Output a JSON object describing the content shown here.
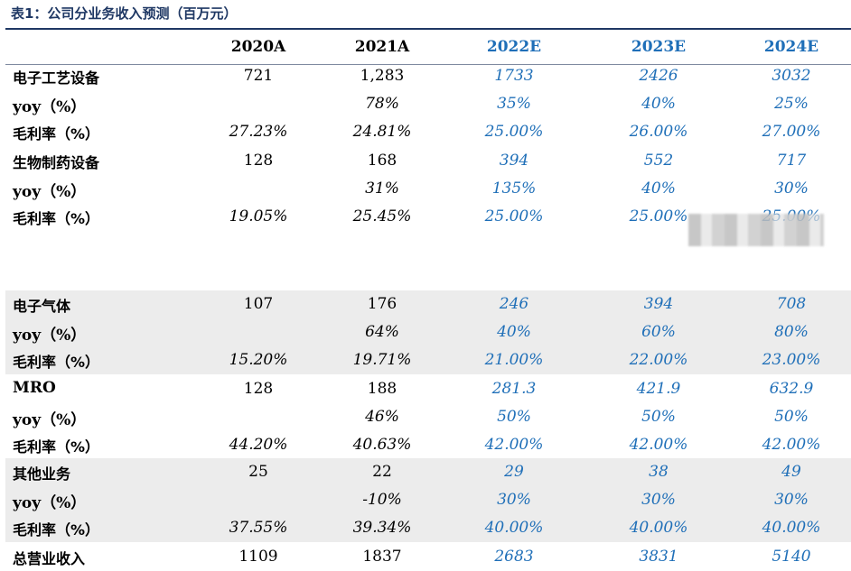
{
  "caption": "表1：公司分业务收入预测（百万元）",
  "header": [
    "2020A",
    "2021A",
    "2022E",
    "2023E",
    "2024E"
  ],
  "groups": [
    {
      "rows": [
        {
          "label": "电子工艺设备",
          "values": [
            "721",
            "1,283",
            "1733",
            "2426",
            "3032"
          ]
        },
        {
          "label": "yoy（%）",
          "values": [
            "",
            "78%",
            "35%",
            "40%",
            "25%"
          ]
        },
        {
          "label": "毛利率（%）",
          "values": [
            "27.23%",
            "24.81%",
            "25.00%",
            "26.00%",
            "27.00%"
          ]
        }
      ]
    },
    {
      "rows": [
        {
          "label": "生物制药设备",
          "values": [
            "128",
            "168",
            "394",
            "552",
            "717"
          ]
        },
        {
          "label": "yoy（%）",
          "values": [
            "",
            "31%",
            "135%",
            "40%",
            "30%"
          ]
        },
        {
          "label": "毛利率（%）",
          "values": [
            "19.05%",
            "25.45%",
            "25.00%",
            "25.00%",
            "25.00%"
          ]
        }
      ]
    },
    {
      "rows": [
        {
          "label": "电子气体",
          "values": [
            "107",
            "176",
            "246",
            "394",
            "708"
          ]
        },
        {
          "label": "yoy（%）",
          "values": [
            "",
            "64%",
            "40%",
            "60%",
            "80%"
          ]
        },
        {
          "label": "毛利率（%）",
          "values": [
            "15.20%",
            "19.71%",
            "21.00%",
            "22.00%",
            "23.00%"
          ]
        }
      ]
    },
    {
      "rows": [
        {
          "label": "MRO",
          "values": [
            "128",
            "188",
            "281.3",
            "421.9",
            "632.9"
          ]
        },
        {
          "label": "yoy（%）",
          "values": [
            "",
            "46%",
            "50%",
            "50%",
            "50%"
          ]
        },
        {
          "label": "毛利率（%）",
          "values": [
            "44.20%",
            "40.63%",
            "42.00%",
            "42.00%",
            "42.00%"
          ]
        }
      ]
    },
    {
      "rows": [
        {
          "label": "其他业务",
          "values": [
            "25",
            "22",
            "29",
            "38",
            "49"
          ]
        },
        {
          "label": "yoy（%）",
          "values": [
            "",
            "-10%",
            "30%",
            "30%",
            "30%"
          ]
        },
        {
          "label": "毛利率（%）",
          "values": [
            "37.55%",
            "39.34%",
            "40.00%",
            "40.00%",
            "40.00%"
          ]
        }
      ]
    },
    {
      "rows": [
        {
          "label": "总营业收入",
          "values": [
            "1109",
            "1837",
            "2683",
            "3831",
            "5140"
          ]
        }
      ]
    }
  ]
}
